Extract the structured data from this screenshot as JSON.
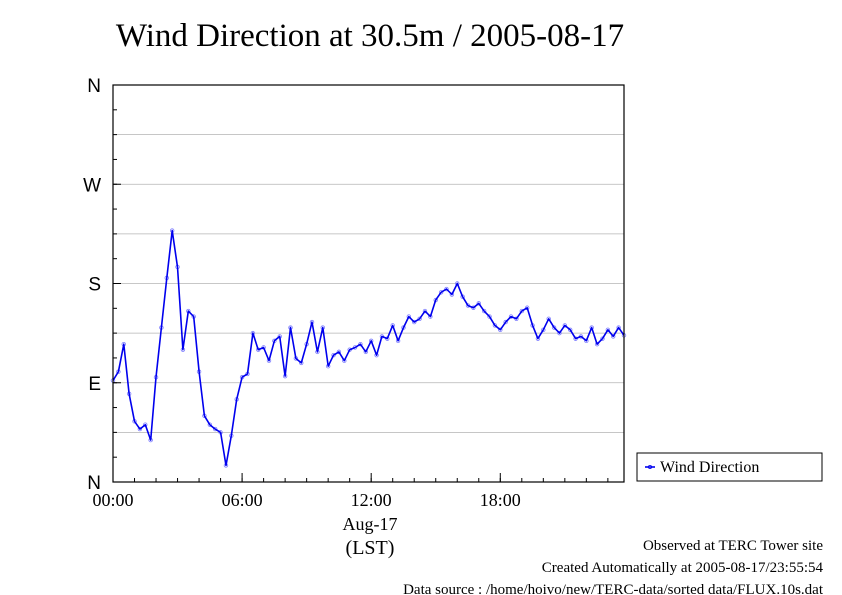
{
  "chart_data": {
    "type": "scatter",
    "title": "Wind Direction at 30.5m / 2005-08-17",
    "xlabel": "(LST)",
    "x_sublabel": "Aug-17",
    "xlim": [
      0,
      23.75
    ],
    "x_ticks": [
      {
        "value": 0,
        "label": "00:00"
      },
      {
        "value": 6,
        "label": "06:00"
      },
      {
        "value": 12,
        "label": "12:00"
      },
      {
        "value": 18,
        "label": "18:00"
      }
    ],
    "ylim": [
      0,
      360
    ],
    "y_ticks": [
      {
        "value": 0,
        "label": "N"
      },
      {
        "value": 90,
        "label": "E"
      },
      {
        "value": 180,
        "label": "S"
      },
      {
        "value": 270,
        "label": "W"
      },
      {
        "value": 360,
        "label": "N"
      }
    ],
    "grid": true,
    "legend": {
      "position": "right",
      "entries": [
        "Wind Direction"
      ]
    },
    "series": [
      {
        "name": "Wind Direction",
        "color": "#0000ee",
        "scatter_color": "#7b7bff",
        "x": [
          0.0,
          0.25,
          0.5,
          0.75,
          1.0,
          1.25,
          1.5,
          1.75,
          2.0,
          2.25,
          2.5,
          2.75,
          3.0,
          3.25,
          3.5,
          3.75,
          4.0,
          4.25,
          4.5,
          4.75,
          5.0,
          5.25,
          5.5,
          5.75,
          6.0,
          6.25,
          6.5,
          6.75,
          7.0,
          7.25,
          7.5,
          7.75,
          8.0,
          8.25,
          8.5,
          8.75,
          9.0,
          9.25,
          9.5,
          9.75,
          10.0,
          10.25,
          10.5,
          10.75,
          11.0,
          11.25,
          11.5,
          11.75,
          12.0,
          12.25,
          12.5,
          12.75,
          13.0,
          13.25,
          13.5,
          13.75,
          14.0,
          14.25,
          14.5,
          14.75,
          15.0,
          15.25,
          15.5,
          15.75,
          16.0,
          16.25,
          16.5,
          16.75,
          17.0,
          17.25,
          17.5,
          17.75,
          18.0,
          18.25,
          18.5,
          18.75,
          19.0,
          19.25,
          19.5,
          19.75,
          20.0,
          20.25,
          20.5,
          20.75,
          21.0,
          21.25,
          21.5,
          21.75,
          22.0,
          22.25,
          22.5,
          22.75,
          23.0,
          23.25,
          23.5,
          23.75
        ],
        "y": [
          92,
          100,
          125,
          80,
          55,
          48,
          52,
          38,
          95,
          140,
          185,
          228,
          195,
          120,
          155,
          150,
          100,
          60,
          52,
          48,
          45,
          15,
          42,
          75,
          95,
          98,
          135,
          120,
          122,
          110,
          128,
          132,
          96,
          140,
          112,
          108,
          125,
          145,
          118,
          140,
          105,
          115,
          118,
          110,
          120,
          122,
          125,
          118,
          128,
          115,
          132,
          130,
          142,
          128,
          140,
          150,
          145,
          148,
          155,
          150,
          165,
          172,
          175,
          170,
          180,
          168,
          160,
          158,
          162,
          155,
          150,
          142,
          138,
          145,
          150,
          148,
          155,
          158,
          142,
          130,
          138,
          148,
          140,
          135,
          142,
          138,
          130,
          132,
          128,
          140,
          125,
          130,
          138,
          132,
          140,
          133
        ]
      }
    ]
  },
  "footer": {
    "line1": "Observed at TERC Tower site",
    "line2": "Created Automatically at 2005-08-17/23:55:54",
    "line3": "Data source : /home/hoivo/new/TERC-data/sorted  data/FLUX.10s.dat"
  }
}
